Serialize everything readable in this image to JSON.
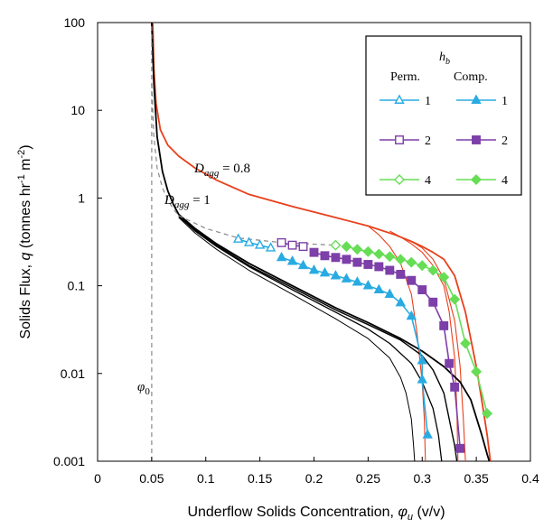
{
  "chart_data": {
    "type": "line",
    "xlabel_main": "Underflow Solids Concentration, ",
    "xlabel_sym": "φ",
    "xlabel_sub": "u",
    "xlabel_unit": " (v/v)",
    "ylabel_main": "Solids Flux, ",
    "ylabel_sym": "q",
    "ylabel_unit_1": " (tonnes hr",
    "ylabel_sup1": "-1",
    "ylabel_unit_2": " m",
    "ylabel_sup2": "-2",
    "ylabel_unit_3": ")",
    "xlim": [
      0,
      0.4
    ],
    "ylim": [
      0.001,
      100
    ],
    "y_scale": "log",
    "x_tick_labels": [
      "0",
      "0.05",
      "0.1",
      "0.15",
      "0.2",
      "0.25",
      "0.3",
      "0.35",
      "0.4"
    ],
    "y_tick_labels": [
      "0.001",
      "0.01",
      "0.1",
      "1",
      "10",
      "100"
    ],
    "legend": {
      "title_sym": "h",
      "title_sub": "b",
      "col_perm": "Perm.",
      "col_comp": "Comp.",
      "rows": [
        {
          "perm": "1",
          "comp": "1",
          "color": "#29abe2",
          "marker": "triangle"
        },
        {
          "perm": "2",
          "comp": "2",
          "color": "#7d3fa8",
          "marker": "square"
        },
        {
          "perm": "4",
          "comp": "4",
          "color": "#66dd55",
          "marker": "diamond"
        }
      ],
      "position": "top-right"
    },
    "annotations": {
      "phi0_sym": "φ",
      "phi0_sub": "0",
      "dagg08_sym": "D",
      "dagg08_sub": "agg",
      "dagg08_val": " = 0.8",
      "dagg1_sym": "D",
      "dagg1_sub": "agg",
      "dagg1_val": " = 1"
    },
    "phi0": 0.05,
    "colors": {
      "red": "#e8401c",
      "black": "#000000",
      "gray_dash": "#888888",
      "blue": "#29abe2",
      "purple": "#7d3fa8",
      "green": "#66dd55"
    },
    "series": [
      {
        "name": "Perm. 1",
        "color": "#29abe2",
        "marker": "triangle",
        "filled": false,
        "x": [
          0.13,
          0.14,
          0.15,
          0.16
        ],
        "y": [
          0.34,
          0.31,
          0.29,
          0.27
        ]
      },
      {
        "name": "Comp. 1",
        "color": "#29abe2",
        "marker": "triangle",
        "filled": true,
        "x": [
          0.17,
          0.18,
          0.19,
          0.2,
          0.21,
          0.22,
          0.23,
          0.24,
          0.25,
          0.26,
          0.27,
          0.28,
          0.29,
          0.3,
          0.3,
          0.305
        ],
        "y": [
          0.21,
          0.19,
          0.17,
          0.15,
          0.14,
          0.13,
          0.12,
          0.11,
          0.1,
          0.09,
          0.08,
          0.064,
          0.045,
          0.014,
          0.0085,
          0.002
        ]
      },
      {
        "name": "Perm. 2",
        "color": "#7d3fa8",
        "marker": "square",
        "filled": false,
        "x": [
          0.17,
          0.18,
          0.19
        ],
        "y": [
          0.31,
          0.29,
          0.28
        ]
      },
      {
        "name": "Comp. 2",
        "color": "#7d3fa8",
        "marker": "square",
        "filled": true,
        "x": [
          0.2,
          0.21,
          0.22,
          0.23,
          0.24,
          0.25,
          0.26,
          0.27,
          0.28,
          0.29,
          0.3,
          0.31,
          0.32,
          0.325,
          0.33,
          0.335
        ],
        "y": [
          0.24,
          0.22,
          0.21,
          0.2,
          0.185,
          0.175,
          0.165,
          0.15,
          0.135,
          0.115,
          0.09,
          0.065,
          0.035,
          0.013,
          0.007,
          0.0014
        ]
      },
      {
        "name": "Perm. 4",
        "color": "#66dd55",
        "marker": "diamond",
        "filled": false,
        "x": [
          0.22
        ],
        "y": [
          0.29
        ]
      },
      {
        "name": "Comp. 4",
        "color": "#66dd55",
        "marker": "diamond",
        "filled": true,
        "x": [
          0.23,
          0.24,
          0.25,
          0.26,
          0.27,
          0.28,
          0.29,
          0.3,
          0.31,
          0.32,
          0.33,
          0.34,
          0.35,
          0.36
        ],
        "y": [
          0.28,
          0.26,
          0.245,
          0.23,
          0.215,
          0.2,
          0.185,
          0.17,
          0.15,
          0.125,
          0.07,
          0.022,
          0.0105,
          0.0035
        ]
      }
    ],
    "curves": [
      {
        "name": "Dagg 0.8 main",
        "color": "#e8401c",
        "width": 1.8,
        "dash": false,
        "x": [
          0.051,
          0.052,
          0.054,
          0.058,
          0.065,
          0.075,
          0.09,
          0.11,
          0.14,
          0.18,
          0.22,
          0.25,
          0.275,
          0.29,
          0.3,
          0.31,
          0.32,
          0.33,
          0.34,
          0.35,
          0.355,
          0.36,
          0.363
        ],
        "y": [
          100,
          30,
          12,
          6,
          4,
          3,
          2.2,
          1.6,
          1.1,
          0.8,
          0.6,
          0.48,
          0.38,
          0.32,
          0.28,
          0.24,
          0.2,
          0.13,
          0.05,
          0.012,
          0.005,
          0.002,
          0.001
        ]
      },
      {
        "name": "Dagg 0.8 branch a",
        "color": "#e8401c",
        "width": 1.1,
        "dash": false,
        "x": [
          0.25,
          0.26,
          0.27,
          0.28,
          0.29,
          0.295,
          0.3,
          0.302,
          0.303
        ],
        "y": [
          0.48,
          0.38,
          0.28,
          0.18,
          0.08,
          0.03,
          0.008,
          0.003,
          0.001
        ]
      },
      {
        "name": "Dagg 0.8 branch b",
        "color": "#e8401c",
        "width": 1.1,
        "dash": false,
        "x": [
          0.27,
          0.28,
          0.29,
          0.3,
          0.31,
          0.32,
          0.325,
          0.33,
          0.332,
          0.333
        ],
        "y": [
          0.42,
          0.36,
          0.3,
          0.24,
          0.17,
          0.1,
          0.05,
          0.015,
          0.004,
          0.001
        ]
      },
      {
        "name": "Dagg 0.8 branch c",
        "color": "#e8401c",
        "width": 1.1,
        "dash": false,
        "x": [
          0.29,
          0.3,
          0.31,
          0.32,
          0.33,
          0.335,
          0.338,
          0.34
        ],
        "y": [
          0.32,
          0.27,
          0.2,
          0.12,
          0.04,
          0.012,
          0.003,
          0.001
        ]
      },
      {
        "name": "Dagg 1 main",
        "color": "#000000",
        "width": 1.8,
        "dash": false,
        "x": [
          0.05,
          0.052,
          0.055,
          0.06,
          0.065,
          0.07,
          0.075,
          0.09,
          0.11,
          0.14,
          0.18,
          0.22,
          0.25,
          0.28,
          0.3,
          0.32,
          0.335,
          0.345,
          0.355,
          0.36,
          0.362
        ],
        "y": [
          100,
          20,
          5,
          2,
          1.2,
          0.85,
          0.65,
          0.45,
          0.3,
          0.18,
          0.1,
          0.056,
          0.038,
          0.025,
          0.018,
          0.012,
          0.008,
          0.005,
          0.002,
          0.0012,
          0.001
        ]
      },
      {
        "name": "Dagg 1 branch a",
        "color": "#000000",
        "width": 1.0,
        "dash": false,
        "x": [
          0.075,
          0.09,
          0.11,
          0.14,
          0.18,
          0.22,
          0.25,
          0.27,
          0.28,
          0.285,
          0.29,
          0.292,
          0.293
        ],
        "y": [
          0.6,
          0.4,
          0.26,
          0.15,
          0.08,
          0.042,
          0.025,
          0.015,
          0.009,
          0.006,
          0.003,
          0.0015,
          0.001
        ]
      },
      {
        "name": "Dagg 1 branch b",
        "color": "#000000",
        "width": 1.3,
        "dash": false,
        "x": [
          0.075,
          0.09,
          0.11,
          0.14,
          0.18,
          0.22,
          0.25,
          0.27,
          0.29,
          0.3,
          0.31,
          0.315,
          0.318
        ],
        "y": [
          0.62,
          0.42,
          0.28,
          0.165,
          0.09,
          0.05,
          0.032,
          0.022,
          0.013,
          0.008,
          0.004,
          0.002,
          0.001
        ]
      },
      {
        "name": "Dagg 1 branch c",
        "color": "#000000",
        "width": 1.4,
        "dash": false,
        "x": [
          0.075,
          0.09,
          0.11,
          0.14,
          0.18,
          0.22,
          0.25,
          0.28,
          0.3,
          0.31,
          0.32,
          0.325,
          0.33,
          0.332
        ],
        "y": [
          0.63,
          0.43,
          0.29,
          0.17,
          0.095,
          0.053,
          0.036,
          0.024,
          0.016,
          0.011,
          0.006,
          0.003,
          0.0015,
          0.001
        ]
      },
      {
        "name": "phi0 line",
        "color": "#888888",
        "width": 1.2,
        "dash": true,
        "x": [
          0.05,
          0.05
        ],
        "y": [
          0.001,
          100
        ]
      },
      {
        "name": "Dagg 1 upper dashed",
        "color": "#888888",
        "width": 1.2,
        "dash": true,
        "x": [
          0.05,
          0.052,
          0.055,
          0.06,
          0.065,
          0.07,
          0.075
        ],
        "y": [
          20,
          5,
          2.2,
          1.3,
          0.95,
          0.75,
          0.63
        ]
      },
      {
        "name": "Perm dashed",
        "color": "#888888",
        "width": 1.2,
        "dash": true,
        "x": [
          0.075,
          0.1,
          0.13,
          0.17,
          0.22
        ],
        "y": [
          0.63,
          0.45,
          0.35,
          0.31,
          0.29
        ]
      }
    ]
  }
}
